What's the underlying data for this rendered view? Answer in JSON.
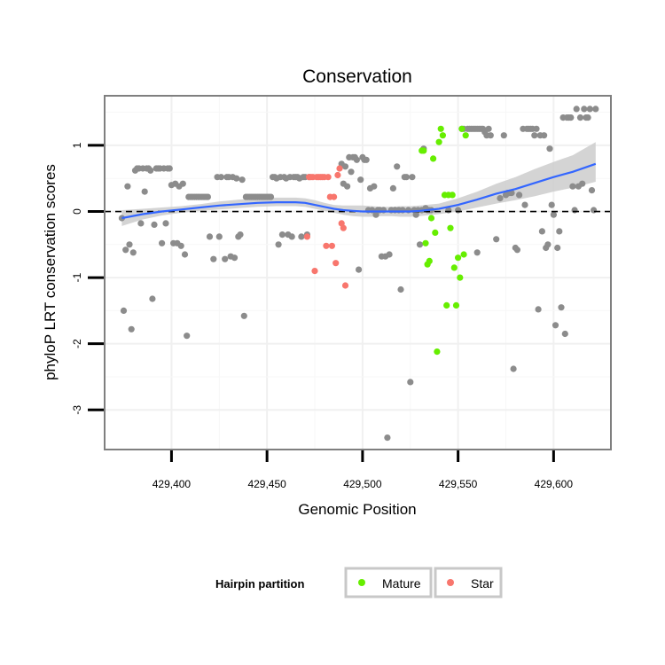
{
  "chart_data": {
    "type": "scatter",
    "title": "Conservation",
    "xlabel": "Genomic Position",
    "ylabel": "phyloP LRT conservation scores",
    "xlim": [
      429365,
      429630
    ],
    "ylim": [
      -3.6,
      1.75
    ],
    "x_ticks": [
      429400,
      429450,
      429500,
      429550,
      429600
    ],
    "x_tick_labels": [
      "429,400",
      "429,450",
      "429,500",
      "429,550",
      "429,600"
    ],
    "y_ticks": [
      -3,
      -2,
      -1,
      0,
      1
    ],
    "y_tick_labels": [
      "-3",
      "-2",
      "-1",
      "0",
      "1"
    ],
    "reference_line": {
      "y": 0,
      "style": "dashed",
      "color": "#000000"
    },
    "legend": {
      "title": "Hairpin partition",
      "position": "bottom",
      "entries": [
        {
          "label": "Mature",
          "color": "#66ee00"
        },
        {
          "label": "Star",
          "color": "#f8766d"
        }
      ]
    },
    "colors": {
      "other": "#8c8c8c",
      "mature": "#66ee00",
      "star": "#f8766d",
      "smooth_line": "#3366ff",
      "smooth_band": "#cccccc"
    },
    "series": [
      {
        "name": "Other",
        "points": [
          [
            429374,
            -0.1
          ],
          [
            429375,
            -1.5
          ],
          [
            429376,
            -0.58
          ],
          [
            429377,
            0.38
          ],
          [
            429378,
            -0.5
          ],
          [
            429379,
            -1.78
          ],
          [
            429380,
            -0.62
          ],
          [
            429381,
            0.62
          ],
          [
            429382,
            0.65
          ],
          [
            429383,
            0.65
          ],
          [
            429384,
            -0.18
          ],
          [
            429385,
            0.65
          ],
          [
            429386,
            0.3
          ],
          [
            429387,
            0.65
          ],
          [
            429388,
            0.65
          ],
          [
            429389,
            0.62
          ],
          [
            429390,
            -1.32
          ],
          [
            429391,
            -0.2
          ],
          [
            429392,
            0.65
          ],
          [
            429393,
            0.65
          ],
          [
            429394,
            0.65
          ],
          [
            429395,
            -0.48
          ],
          [
            429396,
            0.65
          ],
          [
            429397,
            -0.18
          ],
          [
            429398,
            0.65
          ],
          [
            429399,
            0.65
          ],
          [
            429400,
            0.4
          ],
          [
            429401,
            -0.48
          ],
          [
            429402,
            0.42
          ],
          [
            429403,
            -0.48
          ],
          [
            429404,
            0.38
          ],
          [
            429405,
            -0.52
          ],
          [
            429406,
            0.42
          ],
          [
            429407,
            -0.65
          ],
          [
            429408,
            -1.88
          ],
          [
            429409,
            0.22
          ],
          [
            429410,
            0.22
          ],
          [
            429411,
            0.22
          ],
          [
            429412,
            0.22
          ],
          [
            429413,
            0.22
          ],
          [
            429414,
            0.22
          ],
          [
            429415,
            0.22
          ],
          [
            429416,
            0.22
          ],
          [
            429417,
            0.22
          ],
          [
            429418,
            0.22
          ],
          [
            429419,
            0.22
          ],
          [
            429420,
            -0.38
          ],
          [
            429422,
            -0.72
          ],
          [
            429424,
            0.52
          ],
          [
            429425,
            -0.38
          ],
          [
            429426,
            0.52
          ],
          [
            429428,
            -0.72
          ],
          [
            429429,
            0.52
          ],
          [
            429430,
            0.52
          ],
          [
            429431,
            -0.68
          ],
          [
            429432,
            0.52
          ],
          [
            429433,
            -0.7
          ],
          [
            429434,
            0.5
          ],
          [
            429435,
            -0.38
          ],
          [
            429436,
            -0.35
          ],
          [
            429437,
            0.48
          ],
          [
            429438,
            -1.58
          ],
          [
            429439,
            0.22
          ],
          [
            429440,
            0.22
          ],
          [
            429441,
            0.22
          ],
          [
            429442,
            0.22
          ],
          [
            429443,
            0.22
          ],
          [
            429444,
            0.22
          ],
          [
            429445,
            0.22
          ],
          [
            429446,
            0.22
          ],
          [
            429447,
            0.22
          ],
          [
            429448,
            0.22
          ],
          [
            429449,
            0.22
          ],
          [
            429450,
            0.22
          ],
          [
            429451,
            0.22
          ],
          [
            429452,
            0.22
          ],
          [
            429453,
            0.52
          ],
          [
            429454,
            0.52
          ],
          [
            429455,
            0.5
          ],
          [
            429456,
            -0.5
          ],
          [
            429457,
            0.52
          ],
          [
            429458,
            -0.35
          ],
          [
            429459,
            0.52
          ],
          [
            429460,
            0.5
          ],
          [
            429461,
            -0.35
          ],
          [
            429462,
            0.52
          ],
          [
            429463,
            -0.38
          ],
          [
            429464,
            0.52
          ],
          [
            429465,
            0.52
          ],
          [
            429466,
            0.52
          ],
          [
            429467,
            0.5
          ],
          [
            429468,
            -0.38
          ],
          [
            429469,
            0.52
          ],
          [
            429470,
            0.52
          ],
          [
            429471,
            -0.35
          ],
          [
            429472,
            0.52
          ],
          [
            429489,
            0.72
          ],
          [
            429490,
            0.42
          ],
          [
            429491,
            0.68
          ],
          [
            429492,
            0.38
          ],
          [
            429493,
            0.82
          ],
          [
            429494,
            0.6
          ],
          [
            429495,
            0.82
          ],
          [
            429496,
            0.82
          ],
          [
            429497,
            0.78
          ],
          [
            429498,
            -0.88
          ],
          [
            429499,
            0.48
          ],
          [
            429500,
            0.82
          ],
          [
            429501,
            0.78
          ],
          [
            429502,
            0.78
          ],
          [
            429503,
            0.02
          ],
          [
            429504,
            0.35
          ],
          [
            429505,
            0.02
          ],
          [
            429506,
            0.38
          ],
          [
            429507,
            -0.05
          ],
          [
            429508,
            0.02
          ],
          [
            429509,
            0.02
          ],
          [
            429510,
            -0.68
          ],
          [
            429511,
            0.02
          ],
          [
            429512,
            -0.68
          ],
          [
            429513,
            -3.42
          ],
          [
            429514,
            -0.65
          ],
          [
            429515,
            0.02
          ],
          [
            429516,
            0.35
          ],
          [
            429517,
            0.02
          ],
          [
            429518,
            0.68
          ],
          [
            429519,
            0.02
          ],
          [
            429520,
            -1.18
          ],
          [
            429521,
            0.02
          ],
          [
            429522,
            0.52
          ],
          [
            429523,
            0.52
          ],
          [
            429524,
            0.02
          ],
          [
            429525,
            -2.58
          ],
          [
            429526,
            0.52
          ],
          [
            429527,
            0.02
          ],
          [
            429528,
            -0.05
          ],
          [
            429529,
            0.02
          ],
          [
            429530,
            -0.5
          ],
          [
            429531,
            0.02
          ],
          [
            429532,
            0.95
          ],
          [
            429533,
            0.05
          ],
          [
            429534,
            0.02
          ],
          [
            429535,
            0.02
          ],
          [
            429536,
            0.02
          ],
          [
            429545,
            0.02
          ],
          [
            429550,
            0.02
          ],
          [
            429552,
            1.25
          ],
          [
            429553,
            1.25
          ],
          [
            429555,
            1.25
          ],
          [
            429556,
            1.25
          ],
          [
            429557,
            1.25
          ],
          [
            429558,
            1.25
          ],
          [
            429559,
            1.25
          ],
          [
            429560,
            1.25
          ],
          [
            429561,
            1.25
          ],
          [
            429562,
            1.25
          ],
          [
            429563,
            1.25
          ],
          [
            429564,
            1.2
          ],
          [
            429560,
            -0.62
          ],
          [
            429565,
            1.15
          ],
          [
            429566,
            1.25
          ],
          [
            429567,
            1.15
          ],
          [
            429570,
            -0.42
          ],
          [
            429572,
            0.2
          ],
          [
            429574,
            1.15
          ],
          [
            429575,
            0.25
          ],
          [
            429576,
            0.28
          ],
          [
            429577,
            0.28
          ],
          [
            429578,
            0.28
          ],
          [
            429579,
            -2.38
          ],
          [
            429580,
            -0.55
          ],
          [
            429581,
            -0.58
          ],
          [
            429582,
            0.25
          ],
          [
            429584,
            1.25
          ],
          [
            429585,
            0.1
          ],
          [
            429586,
            1.25
          ],
          [
            429587,
            1.25
          ],
          [
            429588,
            1.25
          ],
          [
            429589,
            1.25
          ],
          [
            429590,
            1.15
          ],
          [
            429591,
            1.25
          ],
          [
            429592,
            -1.48
          ],
          [
            429593,
            1.15
          ],
          [
            429594,
            -0.3
          ],
          [
            429595,
            1.15
          ],
          [
            429596,
            -0.55
          ],
          [
            429597,
            -0.5
          ],
          [
            429598,
            0.95
          ],
          [
            429599,
            0.1
          ],
          [
            429600,
            -0.05
          ],
          [
            429601,
            -1.72
          ],
          [
            429602,
            -0.55
          ],
          [
            429603,
            -0.3
          ],
          [
            429604,
            -1.45
          ],
          [
            429605,
            1.42
          ],
          [
            429606,
            -1.85
          ],
          [
            429607,
            1.42
          ],
          [
            429608,
            1.42
          ],
          [
            429609,
            1.42
          ],
          [
            429610,
            0.38
          ],
          [
            429611,
            0.02
          ],
          [
            429612,
            1.55
          ],
          [
            429613,
            0.38
          ],
          [
            429614,
            1.42
          ],
          [
            429615,
            0.42
          ],
          [
            429616,
            1.55
          ],
          [
            429617,
            1.42
          ],
          [
            429618,
            1.42
          ],
          [
            429619,
            1.55
          ],
          [
            429620,
            0.32
          ],
          [
            429621,
            0.02
          ],
          [
            429622,
            1.55
          ]
        ]
      },
      {
        "name": "Mature",
        "points": [
          [
            429531,
            0.92
          ],
          [
            429532,
            0.92
          ],
          [
            429533,
            -0.48
          ],
          [
            429534,
            -0.8
          ],
          [
            429535,
            -0.75
          ],
          [
            429536,
            -0.1
          ],
          [
            429537,
            0.8
          ],
          [
            429538,
            -0.32
          ],
          [
            429539,
            -2.12
          ],
          [
            429540,
            1.05
          ],
          [
            429541,
            1.25
          ],
          [
            429542,
            1.15
          ],
          [
            429543,
            0.25
          ],
          [
            429544,
            -1.42
          ],
          [
            429545,
            0.25
          ],
          [
            429546,
            -0.25
          ],
          [
            429547,
            0.25
          ],
          [
            429548,
            -0.85
          ],
          [
            429549,
            -1.42
          ],
          [
            429550,
            -0.7
          ],
          [
            429551,
            -1.0
          ],
          [
            429552,
            1.25
          ],
          [
            429553,
            -0.65
          ],
          [
            429554,
            1.15
          ]
        ]
      },
      {
        "name": "Star",
        "points": [
          [
            429471,
            -0.38
          ],
          [
            429472,
            0.52
          ],
          [
            429473,
            0.52
          ],
          [
            429474,
            0.52
          ],
          [
            429475,
            -0.9
          ],
          [
            429476,
            0.52
          ],
          [
            429477,
            0.52
          ],
          [
            429478,
            0.52
          ],
          [
            429479,
            0.52
          ],
          [
            429480,
            0.52
          ],
          [
            429481,
            -0.52
          ],
          [
            429482,
            0.52
          ],
          [
            429483,
            0.22
          ],
          [
            429484,
            -0.52
          ],
          [
            429485,
            0.22
          ],
          [
            429486,
            -0.78
          ],
          [
            429487,
            0.55
          ],
          [
            429488,
            0.65
          ],
          [
            429489,
            -0.18
          ],
          [
            429490,
            -0.25
          ],
          [
            429491,
            -1.12
          ]
        ]
      }
    ],
    "smooth": {
      "x": [
        429374,
        429385,
        429395,
        429405,
        429415,
        429425,
        429435,
        429445,
        429455,
        429465,
        429470,
        429475,
        429480,
        429485,
        429490,
        429495,
        429500,
        429505,
        429510,
        429515,
        429520,
        429525,
        429530,
        429540,
        429550,
        429560,
        429570,
        429580,
        429590,
        429600,
        429610,
        429622
      ],
      "y": [
        -0.1,
        -0.04,
        0.0,
        0.03,
        0.06,
        0.09,
        0.11,
        0.13,
        0.14,
        0.14,
        0.13,
        0.1,
        0.07,
        0.04,
        0.02,
        0.01,
        0.0,
        0.0,
        0.0,
        0.0,
        0.0,
        0.0,
        0.01,
        0.04,
        0.1,
        0.18,
        0.27,
        0.34,
        0.43,
        0.52,
        0.6,
        0.72
      ],
      "lower": [
        -0.22,
        -0.12,
        -0.06,
        -0.02,
        0.01,
        0.03,
        0.05,
        0.07,
        0.08,
        0.08,
        0.07,
        0.04,
        0.01,
        -0.02,
        -0.05,
        -0.07,
        -0.08,
        -0.08,
        -0.07,
        -0.07,
        -0.08,
        -0.08,
        -0.07,
        -0.04,
        0.0,
        0.06,
        0.12,
        0.17,
        0.23,
        0.3,
        0.36,
        0.45
      ],
      "upper": [
        0.02,
        0.04,
        0.06,
        0.08,
        0.11,
        0.15,
        0.18,
        0.2,
        0.21,
        0.21,
        0.2,
        0.17,
        0.13,
        0.1,
        0.09,
        0.09,
        0.09,
        0.08,
        0.07,
        0.07,
        0.08,
        0.08,
        0.09,
        0.12,
        0.2,
        0.3,
        0.42,
        0.52,
        0.64,
        0.75,
        0.85,
        1.05
      ]
    }
  }
}
